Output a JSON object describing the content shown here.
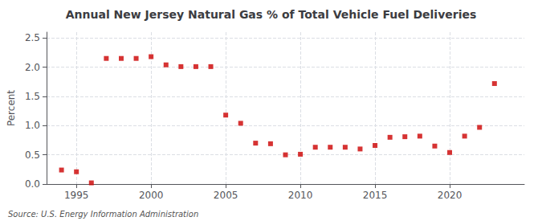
{
  "chart_data": {
    "type": "scatter",
    "title": "Annual New Jersey Natural Gas % of Total Vehicle Fuel Deliveries",
    "ylabel": "Percent",
    "source": "Source: U.S. Energy Information Administration",
    "x": [
      1994,
      1995,
      1996,
      1997,
      1998,
      1999,
      2000,
      2001,
      2002,
      2003,
      2004,
      2005,
      2006,
      2007,
      2008,
      2009,
      2010,
      2011,
      2012,
      2013,
      2014,
      2015,
      2016,
      2017,
      2018,
      2019,
      2020,
      2021,
      2022,
      2023
    ],
    "values": [
      0.24,
      0.21,
      0.02,
      2.15,
      2.15,
      2.15,
      2.18,
      2.04,
      2.01,
      2.01,
      2.01,
      1.18,
      1.04,
      0.7,
      0.69,
      0.5,
      0.51,
      0.63,
      0.63,
      0.63,
      0.6,
      0.66,
      0.8,
      0.81,
      0.82,
      0.65,
      0.54,
      0.82,
      0.97,
      1.72
    ],
    "color": "#cc0000",
    "marker": "square",
    "xlim": [
      1993,
      2025
    ],
    "xticks": [
      1995,
      2000,
      2005,
      2010,
      2015,
      2020
    ],
    "ylim": [
      0,
      2.6
    ],
    "yticks": [
      {
        "value": 0,
        "label": "0.0"
      },
      0.5,
      {
        "value": 1,
        "label": "1.0"
      },
      1.5,
      {
        "value": 2,
        "label": "2.0"
      },
      2.5
    ],
    "grid": true
  }
}
